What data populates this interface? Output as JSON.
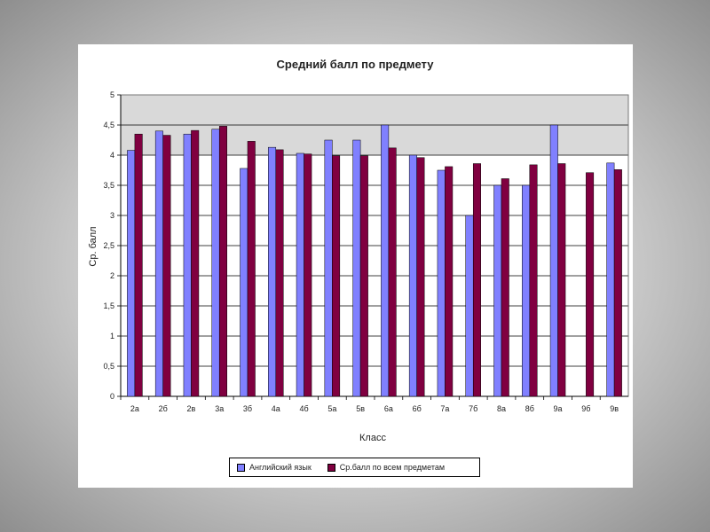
{
  "chart_data": {
    "type": "bar",
    "title": "Средний балл по предмету",
    "xlabel": "Класс",
    "ylabel": "Ср. балл",
    "ylim": [
      0,
      5
    ],
    "yticks": [
      "0",
      "0,5",
      "1",
      "1,5",
      "2",
      "2,5",
      "3",
      "3,5",
      "4",
      "4,5",
      "5"
    ],
    "categories": [
      "2а",
      "2б",
      "2в",
      "3а",
      "3б",
      "4а",
      "4б",
      "5а",
      "5в",
      "6а",
      "6б",
      "7а",
      "7б",
      "8а",
      "8б",
      "9а",
      "9б",
      "9в"
    ],
    "series": [
      {
        "name": "Английский язык",
        "color": "#8080ff",
        "values": [
          4.08,
          4.4,
          4.35,
          4.43,
          3.78,
          4.13,
          4.03,
          4.25,
          4.25,
          4.5,
          4.0,
          3.75,
          3.0,
          3.5,
          3.5,
          4.5,
          0,
          3.87
        ]
      },
      {
        "name": "Ср.балл по всем предметам",
        "color": "#800040",
        "values": [
          4.35,
          4.33,
          4.41,
          4.48,
          4.23,
          4.09,
          4.02,
          3.99,
          3.99,
          4.12,
          3.96,
          3.81,
          3.86,
          3.61,
          3.84,
          3.86,
          3.71,
          3.76
        ]
      }
    ],
    "grid": true,
    "plot_background": "#d9d9d9",
    "legend_position": "bottom"
  }
}
